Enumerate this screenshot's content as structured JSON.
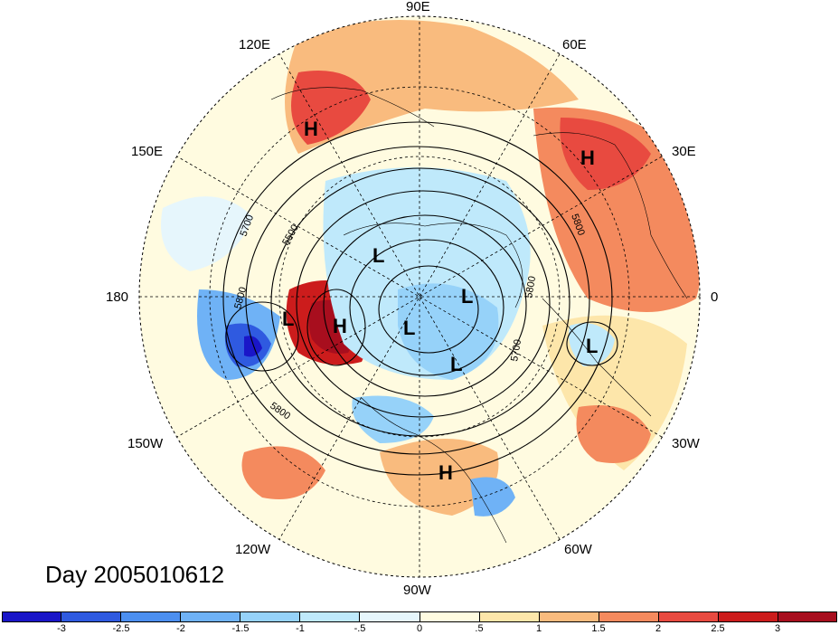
{
  "caption": "Day 2005010612",
  "longitude_labels": {
    "lon_90e": "90E",
    "lon_60e": "60E",
    "lon_30e": "30E",
    "lon_0": "0",
    "lon_30w": "30W",
    "lon_60w": "60W",
    "lon_90w": "90W",
    "lon_120w": "120W",
    "lon_150w": "150W",
    "lon_180": "180",
    "lon_150e": "150E",
    "lon_120e": "120E"
  },
  "pressure_centers": [
    "H",
    "H",
    "H",
    "H",
    "L",
    "L",
    "L",
    "L",
    "L",
    "L"
  ],
  "contour_labels": [
    "5500",
    "5700",
    "5800",
    "5800",
    "5700",
    "5800",
    "5800"
  ],
  "colorbar": {
    "ticks": [
      "-3",
      "-2.5",
      "-2",
      "-1.5",
      "-1",
      "-.5",
      "0",
      ".5",
      "1",
      "1.5",
      "2",
      "2.5",
      "3"
    ],
    "colors": [
      "#1a16c8",
      "#2f5ae0",
      "#4c8ff0",
      "#6fb2f6",
      "#96d2f9",
      "#bfe9fb",
      "#e6f6fc",
      "#fffbe0",
      "#fde6aa",
      "#f9bb7e",
      "#f48a5e",
      "#e84a40",
      "#cc1c1c",
      "#a80e1e"
    ]
  },
  "map_colors": {
    "warm_fill": "#f9bb7e",
    "strong_warm": "#e84a40",
    "cold_fill": "#96d2f9",
    "strong_cold": "#2f5ae0"
  }
}
